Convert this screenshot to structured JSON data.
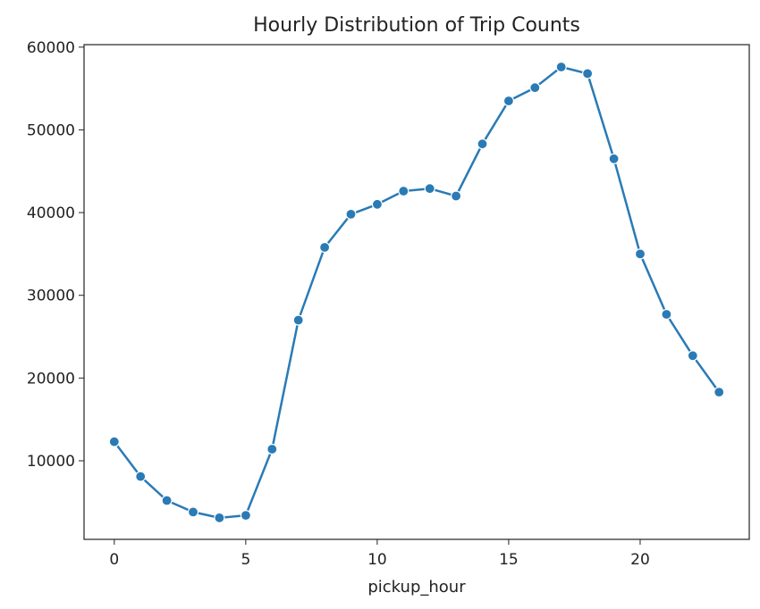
{
  "chart_data": {
    "type": "line",
    "title": "Hourly Distribution of Trip Counts",
    "xlabel": "pickup_hour",
    "ylabel": "",
    "xlim": [
      -1.15,
      24.15
    ],
    "ylim": [
      500,
      60300
    ],
    "xticks": [
      0,
      5,
      10,
      15,
      20
    ],
    "yticks": [
      10000,
      20000,
      30000,
      40000,
      50000,
      60000
    ],
    "grid": false,
    "marker": "circle",
    "series": [
      {
        "color": "#2a7ab5",
        "x": [
          0,
          1,
          2,
          3,
          4,
          5,
          6,
          7,
          8,
          9,
          10,
          11,
          12,
          13,
          14,
          15,
          16,
          17,
          18,
          19,
          20,
          21,
          22,
          23
        ],
        "values": [
          12300,
          8100,
          5200,
          3800,
          3100,
          3400,
          11400,
          27000,
          35800,
          39800,
          41000,
          42600,
          42900,
          42000,
          48300,
          53500,
          55100,
          57600,
          56800,
          46500,
          35000,
          27700,
          22700,
          18300
        ]
      }
    ]
  }
}
